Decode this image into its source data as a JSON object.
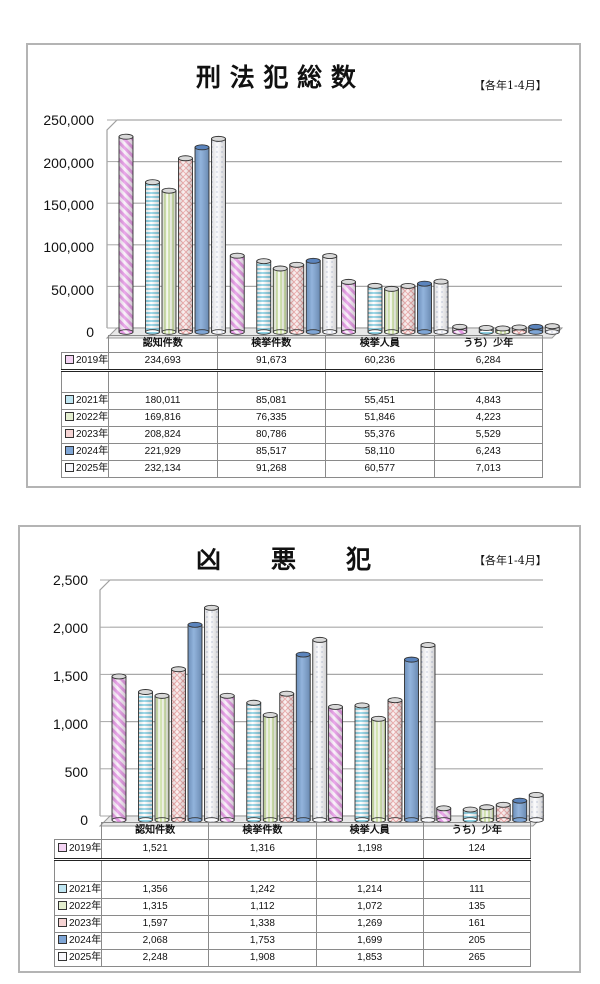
{
  "legend": [
    {
      "label": "2019年",
      "color": "#f3d3f3",
      "pattern": "diag-stripe-pink"
    },
    {
      "label": "2021年",
      "color": "#bfe6f2",
      "pattern": "horiz-stripe-cyan"
    },
    {
      "label": "2022年",
      "color": "#e4efcf",
      "pattern": "vert-stripe-green"
    },
    {
      "label": "2023年",
      "color": "#f6d4d4",
      "pattern": "lattice-pink"
    },
    {
      "label": "2024年",
      "color": "#7fa6d6",
      "pattern": "solid-blue"
    },
    {
      "label": "2025年",
      "color": "#f7f7fb",
      "pattern": "dots-white"
    }
  ],
  "chart1": {
    "title": "刑 法 犯 総 数",
    "period": "【各年1-4月】",
    "yticks": [
      "250,000",
      "200,000",
      "150,000",
      "100,000",
      "50,000",
      "0"
    ],
    "columns": [
      "認知件数",
      "検挙件数",
      "検挙人員",
      "うち）少年"
    ],
    "rows": [
      {
        "label": "2019年",
        "values": [
          "234,693",
          "91,673",
          "60,236",
          "6,284"
        ]
      },
      {
        "label": "2021年",
        "values": [
          "180,011",
          "85,081",
          "55,451",
          "4,843"
        ]
      },
      {
        "label": "2022年",
        "values": [
          "169,816",
          "76,335",
          "51,846",
          "4,223"
        ]
      },
      {
        "label": "2023年",
        "values": [
          "208,824",
          "80,786",
          "55,376",
          "5,529"
        ]
      },
      {
        "label": "2024年",
        "values": [
          "221,929",
          "85,517",
          "58,110",
          "6,243"
        ]
      },
      {
        "label": "2025年",
        "values": [
          "232,134",
          "91,268",
          "60,577",
          "7,013"
        ]
      }
    ]
  },
  "chart2": {
    "title": "凶　　悪　　犯",
    "period": "【各年1-4月】",
    "yticks": [
      "2,500",
      "2,000",
      "1,500",
      "1,000",
      "500",
      "0"
    ],
    "columns": [
      "認知件数",
      "検挙件数",
      "検挙人員",
      "うち）少年"
    ],
    "rows": [
      {
        "label": "2019年",
        "values": [
          "1,521",
          "1,316",
          "1,198",
          "124"
        ]
      },
      {
        "label": "2021年",
        "values": [
          "1,356",
          "1,242",
          "1,214",
          "111"
        ]
      },
      {
        "label": "2022年",
        "values": [
          "1,315",
          "1,112",
          "1,072",
          "135"
        ]
      },
      {
        "label": "2023年",
        "values": [
          "1,597",
          "1,338",
          "1,269",
          "161"
        ]
      },
      {
        "label": "2024年",
        "values": [
          "2,068",
          "1,753",
          "1,699",
          "205"
        ]
      },
      {
        "label": "2025年",
        "values": [
          "2,248",
          "1,908",
          "1,853",
          "265"
        ]
      }
    ]
  },
  "chart_data": [
    {
      "type": "bar",
      "title": "刑法犯総数",
      "subtitle": "【各年1-4月】",
      "categories": [
        "認知件数",
        "検挙件数",
        "検挙人員",
        "うち）少年"
      ],
      "series": [
        {
          "name": "2019年",
          "values": [
            234693,
            91673,
            60236,
            6284
          ]
        },
        {
          "name": "2021年",
          "values": [
            180011,
            85081,
            55451,
            4843
          ]
        },
        {
          "name": "2022年",
          "values": [
            169816,
            76335,
            51846,
            4223
          ]
        },
        {
          "name": "2023年",
          "values": [
            208824,
            80786,
            55376,
            5529
          ]
        },
        {
          "name": "2024年",
          "values": [
            221929,
            85517,
            58110,
            6243
          ]
        },
        {
          "name": "2025年",
          "values": [
            232134,
            91268,
            60577,
            7013
          ]
        }
      ],
      "xlabel": "",
      "ylabel": "",
      "ylim": [
        0,
        250000
      ],
      "yticks": [
        0,
        50000,
        100000,
        150000,
        200000,
        250000
      ],
      "grid": true,
      "legend_position": "data-table-left",
      "style": "3d-cylinder"
    },
    {
      "type": "bar",
      "title": "凶悪犯",
      "subtitle": "【各年1-4月】",
      "categories": [
        "認知件数",
        "検挙件数",
        "検挙人員",
        "うち）少年"
      ],
      "series": [
        {
          "name": "2019年",
          "values": [
            1521,
            1316,
            1198,
            124
          ]
        },
        {
          "name": "2021年",
          "values": [
            1356,
            1242,
            1214,
            111
          ]
        },
        {
          "name": "2022年",
          "values": [
            1315,
            1112,
            1072,
            135
          ]
        },
        {
          "name": "2023年",
          "values": [
            1597,
            1338,
            1269,
            161
          ]
        },
        {
          "name": "2024年",
          "values": [
            2068,
            1753,
            1699,
            205
          ]
        },
        {
          "name": "2025年",
          "values": [
            2248,
            1908,
            1853,
            265
          ]
        }
      ],
      "xlabel": "",
      "ylabel": "",
      "ylim": [
        0,
        2500
      ],
      "yticks": [
        0,
        500,
        1000,
        1500,
        2000,
        2500
      ],
      "grid": true,
      "legend_position": "data-table-left",
      "style": "3d-cylinder"
    }
  ]
}
